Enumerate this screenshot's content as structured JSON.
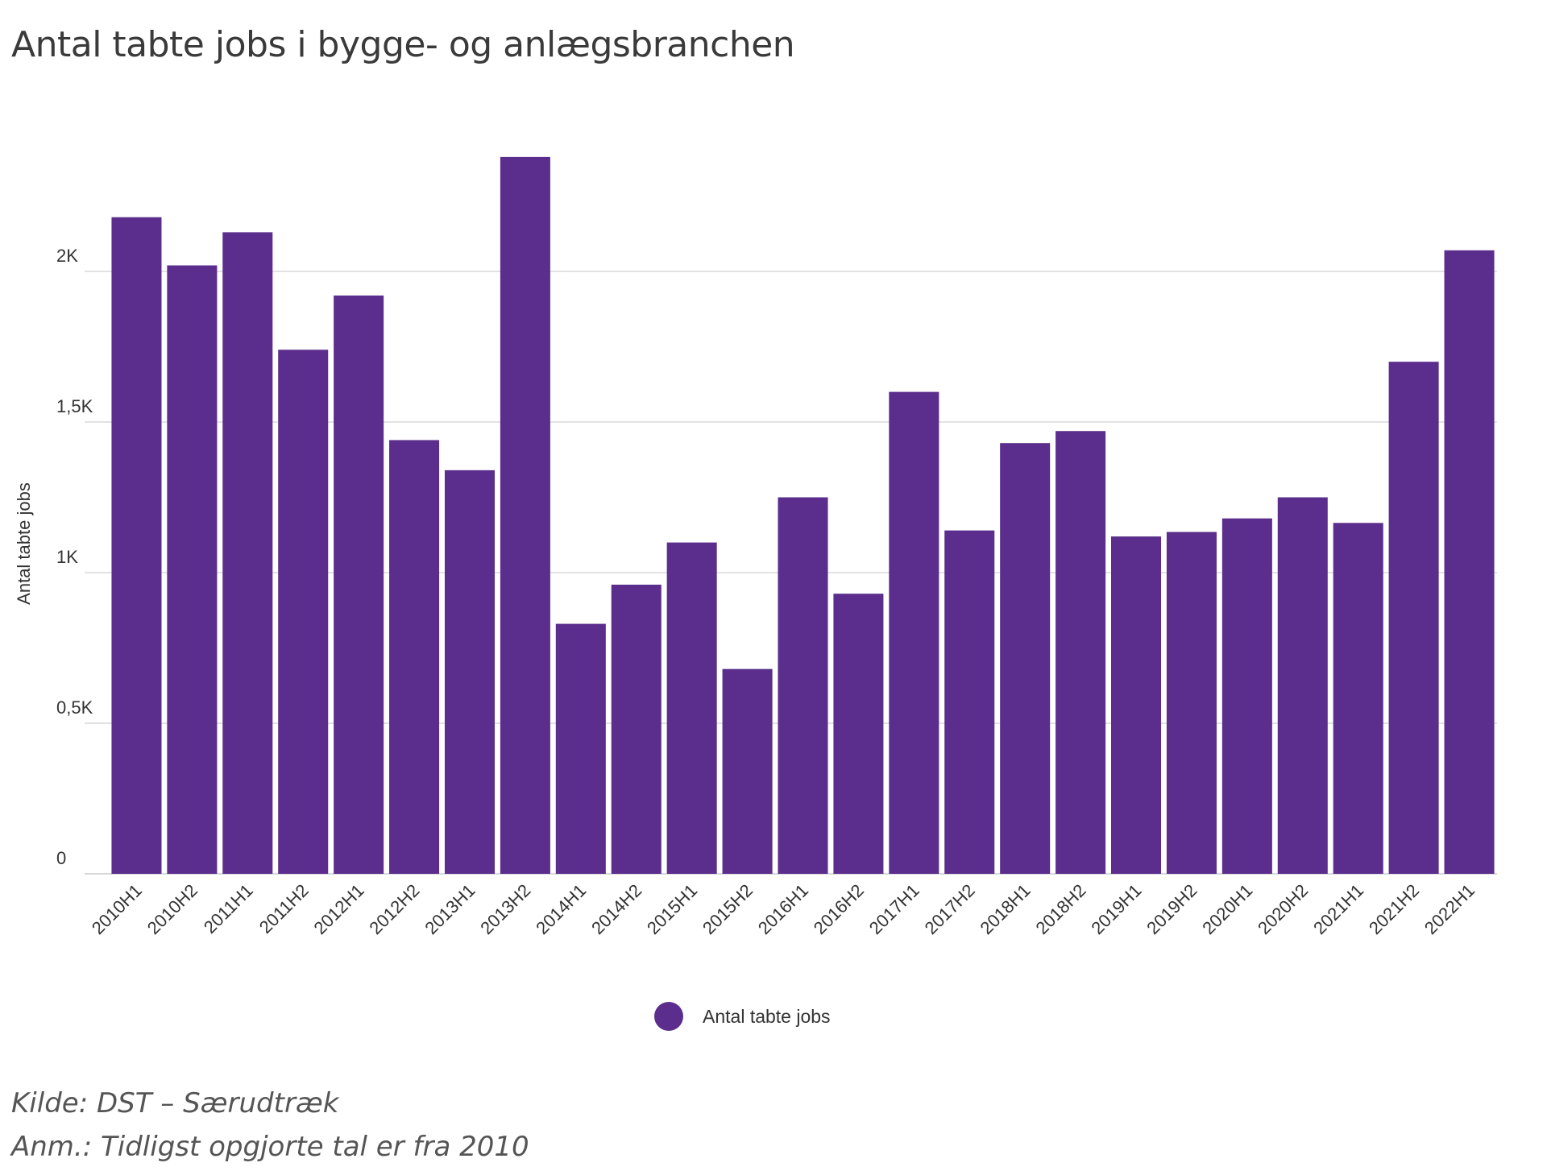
{
  "chart_data": {
    "type": "bar",
    "title": "Antal tabte jobs i bygge- og anlægsbranchen",
    "ylabel": "Antal tabte jobs",
    "xlabel": "",
    "ylim": [
      0,
      2500
    ],
    "yticks": [
      {
        "value": 0,
        "label": "0"
      },
      {
        "value": 500,
        "label": "0,5K"
      },
      {
        "value": 1000,
        "label": "1K"
      },
      {
        "value": 1500,
        "label": "1,5K"
      },
      {
        "value": 2000,
        "label": "2K"
      }
    ],
    "grid": true,
    "legend_position": "bottom-center",
    "categories": [
      "2010H1",
      "2010H2",
      "2011H1",
      "2011H2",
      "2012H1",
      "2012H2",
      "2013H1",
      "2013H2",
      "2014H1",
      "2014H2",
      "2015H1",
      "2015H2",
      "2016H1",
      "2016H2",
      "2017H1",
      "2017H2",
      "2018H1",
      "2018H2",
      "2019H1",
      "2019H2",
      "2020H1",
      "2020H2",
      "2021H1",
      "2021H2",
      "2022H1"
    ],
    "series": [
      {
        "name": "Antal tabte jobs",
        "color": "#5b2d8c",
        "values": [
          2180,
          2020,
          2130,
          1740,
          1920,
          1440,
          1340,
          2380,
          830,
          960,
          1100,
          680,
          1250,
          930,
          1600,
          1140,
          1430,
          1470,
          1120,
          1135,
          1180,
          1250,
          1165,
          1700,
          2070
        ]
      }
    ]
  },
  "notes": {
    "source": "Kilde: DST – Særudtræk",
    "remark": "Anm.: Tidligst opgjorte tal er fra 2010"
  },
  "colors": {
    "bar": "#5b2d8c",
    "grid": "#d9d9d9"
  }
}
